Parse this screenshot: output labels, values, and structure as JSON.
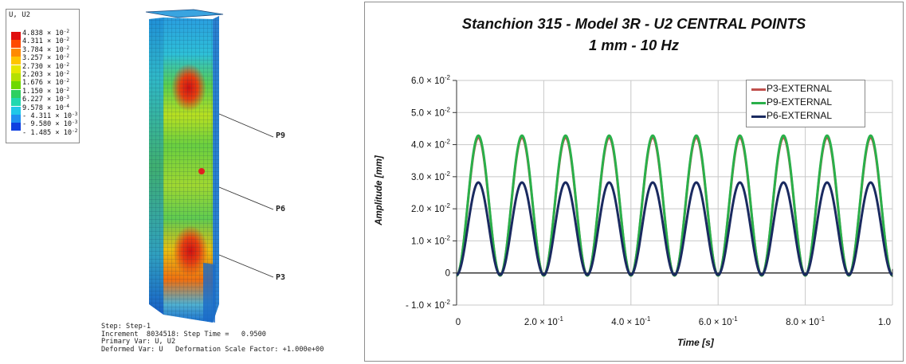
{
  "model_panel": {
    "legend_title": "U, U2",
    "legend_entries": [
      {
        "m": "4.838",
        "e": "-2",
        "color": "#e01010"
      },
      {
        "m": "4.311",
        "e": "-2",
        "color": "#ff4a00"
      },
      {
        "m": "3.784",
        "e": "-2",
        "color": "#ff8a00"
      },
      {
        "m": "3.257",
        "e": "-2",
        "color": "#ffc400"
      },
      {
        "m": "2.730",
        "e": "-2",
        "color": "#e6e600"
      },
      {
        "m": "2.203",
        "e": "-2",
        "color": "#b4e000"
      },
      {
        "m": "1.676",
        "e": "-2",
        "color": "#6ed800"
      },
      {
        "m": "1.150",
        "e": "-2",
        "color": "#2ed060"
      },
      {
        "m": "6.227",
        "e": "-3",
        "color": "#20d8b0"
      },
      {
        "m": "9.578",
        "e": "-4",
        "color": "#20c8e8"
      },
      {
        "m": "- 4.311",
        "e": "-3",
        "color": "#2090f0"
      },
      {
        "m": "- 9.580",
        "e": "-3",
        "color": "#1040e0"
      },
      {
        "m": "- 1.485",
        "e": "-2",
        "color": "#0a14c0"
      }
    ],
    "times_symbol": "×",
    "base": "10",
    "point_labels": {
      "p9": "P9",
      "p6": "P6",
      "p3": "P3"
    },
    "step_info": [
      "Step: Step-1",
      "Increment  8034518: Step Time =   0.9500",
      "Primary Var: U, U2",
      "Deformed Var: U   Deformation Scale Factor: +1.000e+00"
    ]
  },
  "chart_data": {
    "type": "line",
    "title": "Stanchion 315 - Model 3R - U2 CENTRAL POINTS",
    "subtitle": "1 mm - 10 Hz",
    "xlabel": "Time [s]",
    "ylabel": "Amplitude [mm]",
    "xlim": [
      0,
      1.0
    ],
    "ylim": [
      -0.01,
      0.06
    ],
    "x_ticks": [
      {
        "label": "0"
      },
      {
        "label": "2.0 × 10",
        "sup": "-1"
      },
      {
        "label": "4.0 × 10",
        "sup": "-1"
      },
      {
        "label": "6.0 × 10",
        "sup": "-1"
      },
      {
        "label": "8.0 × 10",
        "sup": "-1"
      },
      {
        "label": "1.0"
      }
    ],
    "y_ticks": [
      {
        "label": "6.0 × 10",
        "sup": "-2"
      },
      {
        "label": "5.0 × 10",
        "sup": "-2"
      },
      {
        "label": "4.0 × 10",
        "sup": "-2"
      },
      {
        "label": "3.0 × 10",
        "sup": "-2"
      },
      {
        "label": "2.0 × 10",
        "sup": "-2"
      },
      {
        "label": "1.0 × 10",
        "sup": "-2"
      },
      {
        "label": "0"
      },
      {
        "label": "- 1.0 × 10",
        "sup": "-2"
      }
    ],
    "grid": true,
    "legend_position": "top-right",
    "frequency_hz": 10,
    "series": [
      {
        "name": "P3-EXTERNAL",
        "color": "#c0504d",
        "min": -0.0008,
        "max": 0.0422
      },
      {
        "name": "P9-EXTERNAL",
        "color": "#2ab04a",
        "min": -0.0008,
        "max": 0.0428
      },
      {
        "name": "P6-EXTERNAL",
        "color": "#1a2a60",
        "min": -0.0006,
        "max": 0.0282
      }
    ]
  }
}
